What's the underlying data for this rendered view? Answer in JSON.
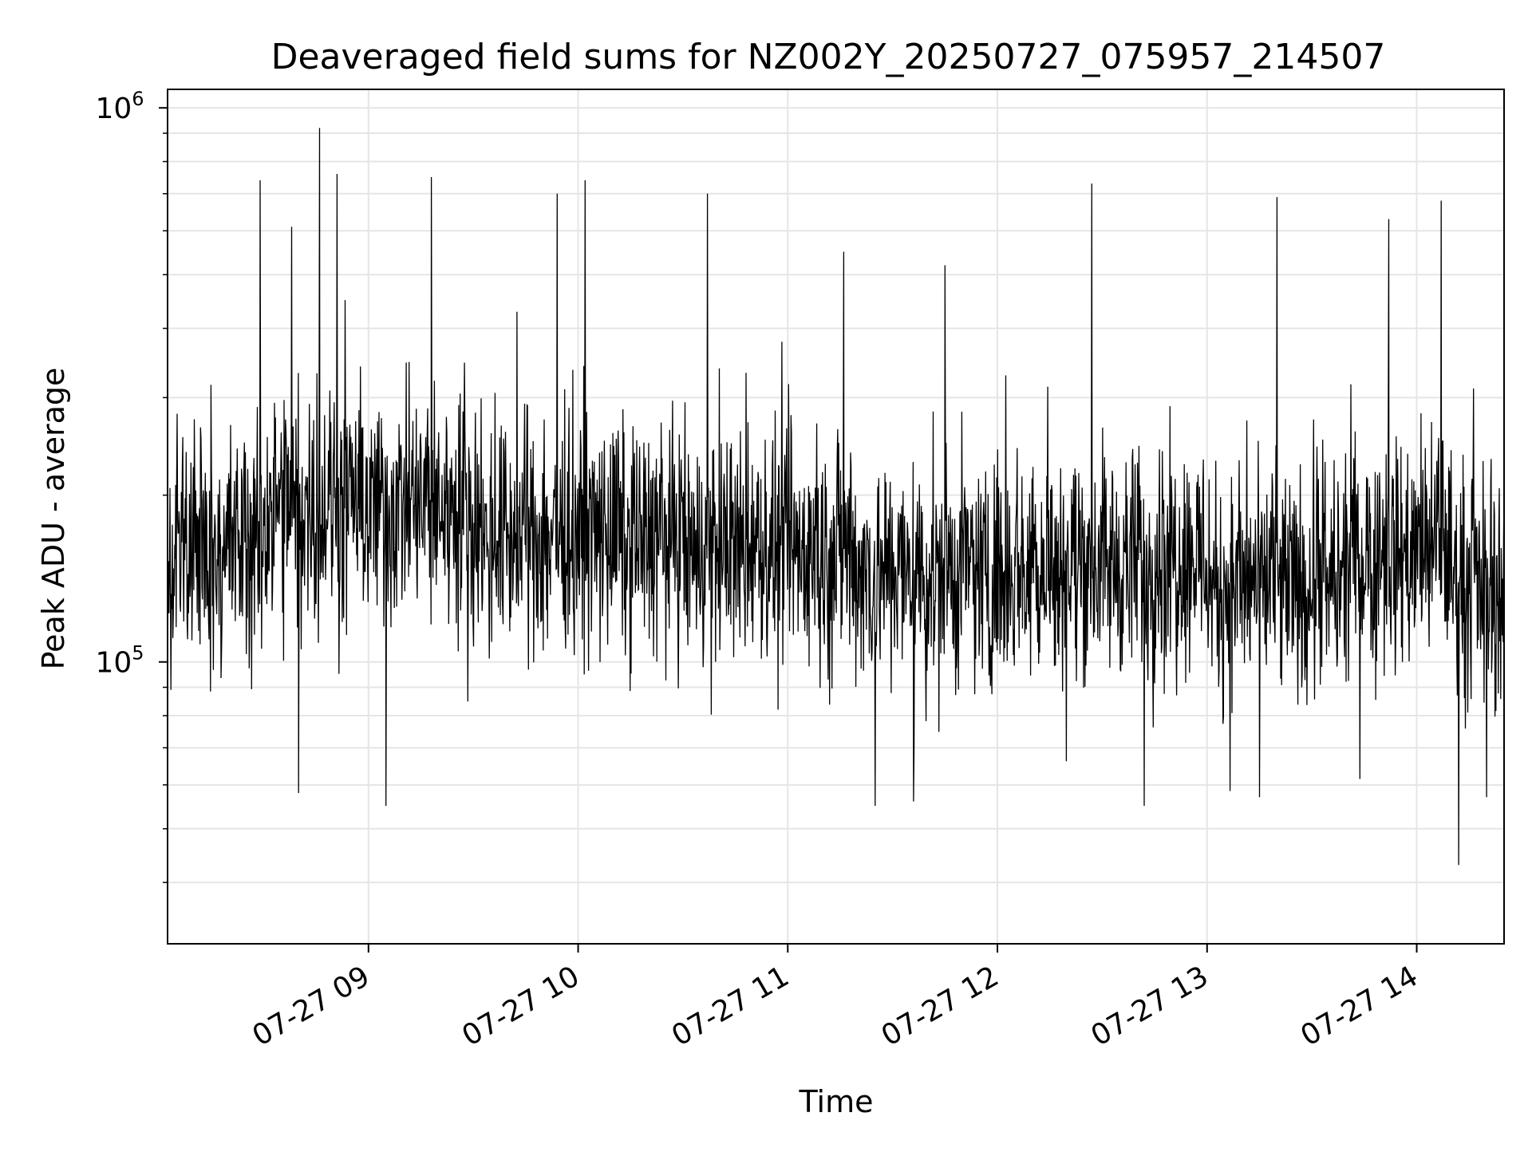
{
  "chart_data": {
    "type": "line",
    "title": "Deaveraged field sums for NZ002Y_20250727_075957_214507",
    "xlabel": "Time",
    "ylabel": "Peak ADU - average",
    "yscale": "log",
    "xlim": [
      "2025-07-27T08:02:30",
      "2025-07-27T14:25:00"
    ],
    "ylim": [
      31000,
      1080000
    ],
    "grid": true,
    "line_color": "#000000",
    "grid_color": "#e5e5e5",
    "x_ticks": [
      {
        "value": "2025-07-27T09:00:00",
        "label": "07-27 09"
      },
      {
        "value": "2025-07-27T10:00:00",
        "label": "07-27 10"
      },
      {
        "value": "2025-07-27T11:00:00",
        "label": "07-27 11"
      },
      {
        "value": "2025-07-27T12:00:00",
        "label": "07-27 12"
      },
      {
        "value": "2025-07-27T13:00:00",
        "label": "07-27 13"
      },
      {
        "value": "2025-07-27T14:00:00",
        "label": "07-27 14"
      }
    ],
    "y_major_ticks": [
      {
        "value": 100000,
        "base": "10",
        "exp": "5"
      },
      {
        "value": 1000000,
        "base": "10",
        "exp": "6"
      }
    ],
    "y_minor_ticks": [
      40000,
      50000,
      60000,
      70000,
      80000,
      90000,
      200000,
      300000,
      400000,
      500000,
      600000,
      700000,
      800000,
      900000
    ],
    "series": [
      {
        "x_start": "2025-07-27T08:02:30",
        "x_end": "2025-07-27T14:25:00",
        "segment_trend": [
          {
            "start": "2025-07-27T08:02:30",
            "low": 80000,
            "high": 330000
          },
          {
            "start": "2025-07-27T08:30:00",
            "low": 95000,
            "high": 380000
          },
          {
            "start": "2025-07-27T09:30:00",
            "low": 85000,
            "high": 340000
          },
          {
            "start": "2025-07-27T10:30:00",
            "low": 80000,
            "high": 320000
          },
          {
            "start": "2025-07-27T11:20:00",
            "low": 72000,
            "high": 290000
          },
          {
            "start": "2025-07-27T12:00:00",
            "low": 75000,
            "high": 300000
          },
          {
            "start": "2025-07-27T12:45:00",
            "low": 80000,
            "high": 310000
          },
          {
            "start": "2025-07-27T13:00:00",
            "low": 70000,
            "high": 270000
          },
          {
            "start": "2025-07-27T13:40:00",
            "low": 80000,
            "high": 310000
          },
          {
            "start": "2025-07-27T14:10:00",
            "low": 70000,
            "high": 280000
          }
        ],
        "peaks": [
          {
            "x": "2025-07-27T08:29:00",
            "y": 740000
          },
          {
            "x": "2025-07-27T08:38:00",
            "y": 610000
          },
          {
            "x": "2025-07-27T08:46:00",
            "y": 920000
          },
          {
            "x": "2025-07-27T08:51:00",
            "y": 760000
          },
          {
            "x": "2025-07-27T09:18:00",
            "y": 750000
          },
          {
            "x": "2025-07-27T09:54:00",
            "y": 700000
          },
          {
            "x": "2025-07-27T10:02:00",
            "y": 740000
          },
          {
            "x": "2025-07-27T10:37:00",
            "y": 700000
          },
          {
            "x": "2025-07-27T11:16:00",
            "y": 550000
          },
          {
            "x": "2025-07-27T11:45:00",
            "y": 520000
          },
          {
            "x": "2025-07-27T12:27:00",
            "y": 730000
          },
          {
            "x": "2025-07-27T13:20:00",
            "y": 690000
          },
          {
            "x": "2025-07-27T13:52:00",
            "y": 630000
          },
          {
            "x": "2025-07-27T14:07:00",
            "y": 680000
          }
        ],
        "troughs": [
          {
            "x": "2025-07-27T08:40:00",
            "y": 58000
          },
          {
            "x": "2025-07-27T09:05:00",
            "y": 55000
          },
          {
            "x": "2025-07-27T11:25:00",
            "y": 55000
          },
          {
            "x": "2025-07-27T11:36:00",
            "y": 56000
          },
          {
            "x": "2025-07-27T12:42:00",
            "y": 55000
          },
          {
            "x": "2025-07-27T13:15:00",
            "y": 57000
          },
          {
            "x": "2025-07-27T14:12:00",
            "y": 43000
          },
          {
            "x": "2025-07-27T14:20:00",
            "y": 57000
          }
        ]
      }
    ]
  }
}
